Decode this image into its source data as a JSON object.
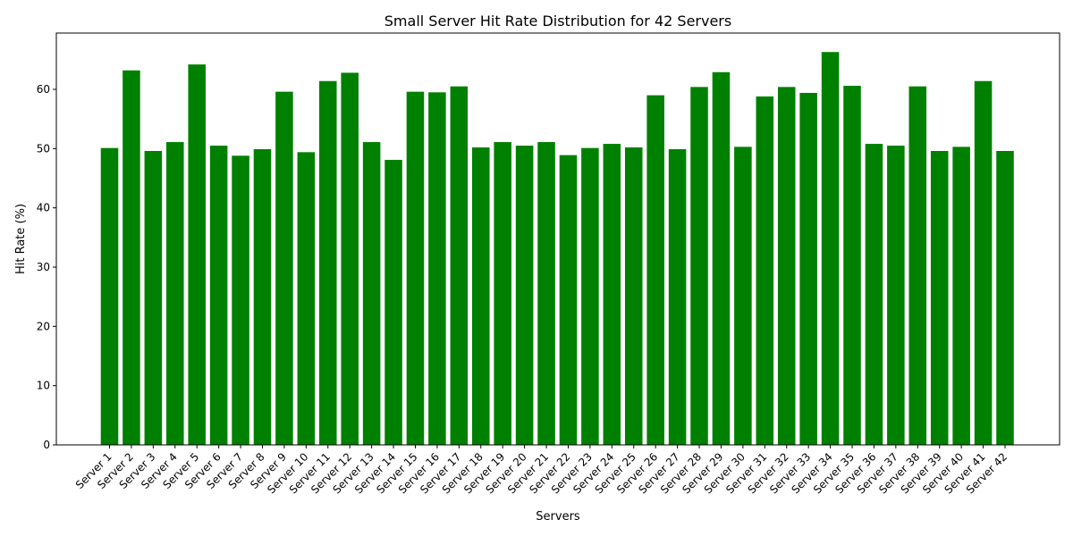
{
  "chart_data": {
    "type": "bar",
    "title": "Small Server Hit Rate Distribution for 42 Servers",
    "xlabel": "Servers",
    "ylabel": "Hit Rate (%)",
    "ylim": [
      0,
      69.5
    ],
    "yticks": [
      0,
      10,
      20,
      30,
      40,
      50,
      60
    ],
    "bar_color": "#008000",
    "grid": false,
    "categories": [
      "Server 1",
      "Server 2",
      "Server 3",
      "Server 4",
      "Server 5",
      "Server 6",
      "Server 7",
      "Server 8",
      "Server 9",
      "Server 10",
      "Server 11",
      "Server 12",
      "Server 13",
      "Server 14",
      "Server 15",
      "Server 16",
      "Server 17",
      "Server 18",
      "Server 19",
      "Server 20",
      "Server 21",
      "Server 22",
      "Server 23",
      "Server 24",
      "Server 25",
      "Server 26",
      "Server 27",
      "Server 28",
      "Server 29",
      "Server 30",
      "Server 31",
      "Server 32",
      "Server 33",
      "Server 34",
      "Server 35",
      "Server 36",
      "Server 37",
      "Server 38",
      "Server 39",
      "Server 40",
      "Server 41",
      "Server 42"
    ],
    "values": [
      50.1,
      63.2,
      49.6,
      51.1,
      64.2,
      50.5,
      48.8,
      49.9,
      59.6,
      49.4,
      61.4,
      62.8,
      51.1,
      48.1,
      59.6,
      59.5,
      60.5,
      50.2,
      51.1,
      50.5,
      51.1,
      48.9,
      50.1,
      50.8,
      50.2,
      59.0,
      49.9,
      60.4,
      62.9,
      50.3,
      58.8,
      60.4,
      59.4,
      66.3,
      60.6,
      50.8,
      50.5,
      60.5,
      49.6,
      50.3,
      61.4,
      49.6
    ]
  }
}
